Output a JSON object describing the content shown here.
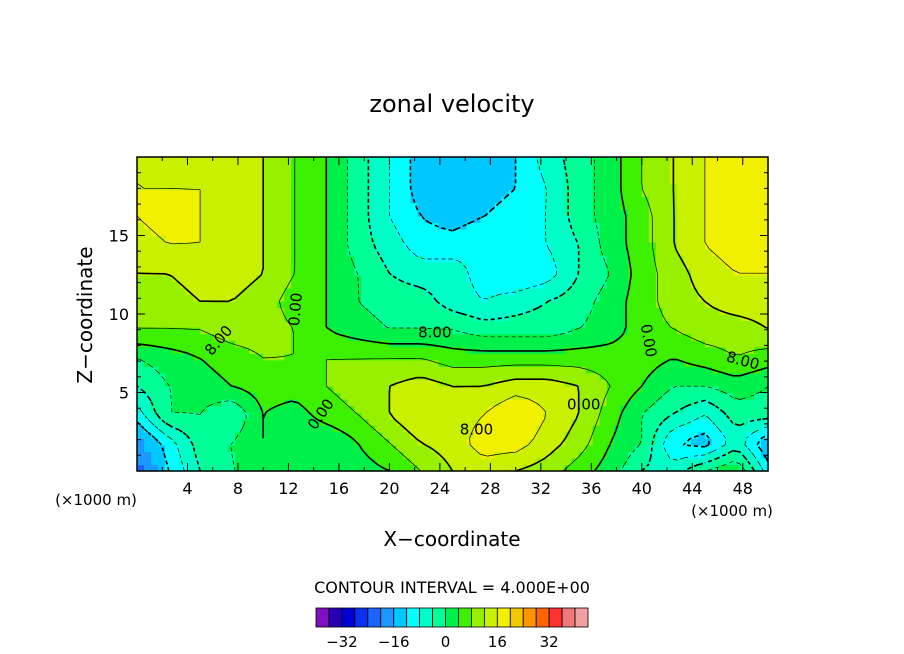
{
  "chart_data": {
    "type": "heatmap",
    "title": "zonal velocity",
    "xlabel": "X−coordinate",
    "ylabel": "Z−coordinate",
    "x_unit_left": "(×1000 m)",
    "x_unit_right": "(×1000 m)",
    "xlim": [
      0,
      50
    ],
    "ylim": [
      0,
      20
    ],
    "xticks": [
      4,
      8,
      12,
      16,
      20,
      24,
      28,
      32,
      36,
      40,
      44,
      48
    ],
    "xtick_labels": [
      "4",
      "8",
      "12",
      "16",
      "20",
      "24",
      "28",
      "32",
      "36",
      "40",
      "44",
      "48"
    ],
    "yticks": [
      5,
      10,
      15
    ],
    "ytick_labels": [
      "5",
      "10",
      "15"
    ],
    "contour_interval_text": "CONTOUR INTERVAL = 4.000E+00",
    "contour_labels": [
      {
        "text": "8.00",
        "x": 6.5,
        "y": 8.3,
        "angle": -50
      },
      {
        "text": "0.00",
        "x": 12.6,
        "y": 10.3,
        "angle": -85
      },
      {
        "text": "8.00",
        "x": 23.6,
        "y": 8.8,
        "angle": 0
      },
      {
        "text": "0.00",
        "x": 40.5,
        "y": 8.3,
        "angle": 80
      },
      {
        "text": "8.00",
        "x": 48.0,
        "y": 7.0,
        "angle": 15
      },
      {
        "text": "0.00",
        "x": 35.4,
        "y": 4.2,
        "angle": 0
      },
      {
        "text": "0.00",
        "x": 14.6,
        "y": 3.6,
        "angle": -55
      },
      {
        "text": "8.00",
        "x": 26.9,
        "y": 2.6,
        "angle": 0
      }
    ],
    "field_description": "Gridded zonal velocity (approx. -32 to +20); weak/negative in lower-left and lower-right corners, strong negative core near x=24,z=15, positive along bottom center",
    "grid": [
      [
        -26,
        -16,
        -8,
        -4,
        -4,
        -4,
        -4,
        -2,
        0,
        4,
        8,
        10,
        8,
        6,
        2,
        -2,
        -8,
        -10,
        -4,
        0,
        -14
      ],
      [
        -22,
        -14,
        -6,
        -4,
        0,
        -4,
        -4,
        0,
        4,
        8,
        10,
        14,
        14,
        10,
        6,
        0,
        -4,
        -16,
        -18,
        -10,
        -20
      ],
      [
        -14,
        -4,
        -4,
        -8,
        0,
        -2,
        2,
        4,
        8,
        12,
        10,
        12,
        16,
        12,
        8,
        2,
        -4,
        -8,
        -12,
        -6,
        -6
      ],
      [
        -8,
        -4,
        -2,
        0,
        2,
        2,
        4,
        6,
        8,
        10,
        8,
        8,
        10,
        10,
        8,
        4,
        0,
        -4,
        -4,
        -2,
        -4
      ],
      [
        -4,
        -2,
        0,
        2,
        4,
        4,
        4,
        4,
        4,
        4,
        2,
        2,
        2,
        2,
        2,
        2,
        2,
        0,
        2,
        4,
        2
      ],
      [
        4,
        4,
        4,
        6,
        6,
        4,
        0,
        -2,
        -4,
        -4,
        -4,
        -6,
        -6,
        -6,
        -4,
        -2,
        2,
        4,
        6,
        6,
        8
      ],
      [
        6,
        6,
        8,
        8,
        6,
        2,
        0,
        -4,
        -6,
        -6,
        -10,
        -12,
        -10,
        -8,
        -6,
        -2,
        2,
        6,
        8,
        10,
        10
      ],
      [
        8,
        8,
        10,
        10,
        8,
        4,
        0,
        -4,
        -8,
        -10,
        -10,
        -14,
        -16,
        -14,
        -8,
        -4,
        2,
        6,
        10,
        12,
        12
      ],
      [
        10,
        12,
        12,
        10,
        8,
        4,
        0,
        -6,
        -10,
        -14,
        -14,
        -12,
        -14,
        -12,
        -8,
        -2,
        2,
        8,
        12,
        14,
        14
      ],
      [
        12,
        14,
        12,
        10,
        8,
        4,
        0,
        -6,
        -12,
        -16,
        -18,
        -16,
        -14,
        -12,
        -6,
        -2,
        2,
        8,
        12,
        16,
        16
      ],
      [
        12,
        12,
        12,
        10,
        8,
        4,
        0,
        -6,
        -12,
        -18,
        -18,
        -18,
        -16,
        -12,
        -6,
        -2,
        4,
        8,
        12,
        14,
        14
      ],
      [
        12,
        10,
        10,
        8,
        8,
        4,
        0,
        -6,
        -12,
        -18,
        -18,
        -18,
        -16,
        -10,
        -6,
        -2,
        4,
        8,
        12,
        12,
        12
      ]
    ],
    "grid_x": [
      0,
      2.5,
      5,
      7.5,
      10,
      12.5,
      15,
      17.5,
      20,
      22.5,
      25,
      27.5,
      30,
      32.5,
      35,
      37.5,
      40,
      42.5,
      45,
      47.5,
      50
    ],
    "grid_y": [
      0,
      1.8,
      3.6,
      5.4,
      7.2,
      9.0,
      10.8,
      12.6,
      14.4,
      16.2,
      18.0,
      20.0
    ],
    "colorbar": {
      "levels": [
        -36,
        -32,
        -28,
        -24,
        -20,
        -16,
        -12,
        -8,
        -4,
        0,
        4,
        8,
        12,
        16,
        20,
        24,
        28,
        32,
        36
      ],
      "colors": [
        "#7f0fbf",
        "#2a00b4",
        "#0000d2",
        "#0a30f0",
        "#1a64ff",
        "#1e96ff",
        "#00c8ff",
        "#00ffff",
        "#00ffc8",
        "#00ff96",
        "#00f04b",
        "#3cf000",
        "#96f000",
        "#c8f000",
        "#f0f000",
        "#f0c800",
        "#ff9600",
        "#ff6400",
        "#ff3232",
        "#f07878",
        "#f0a0a0"
      ],
      "tick_labels": [
        "−32",
        "−16",
        "0",
        "16",
        "32"
      ],
      "tick_values": [
        -32,
        -16,
        0,
        16,
        32
      ]
    }
  }
}
